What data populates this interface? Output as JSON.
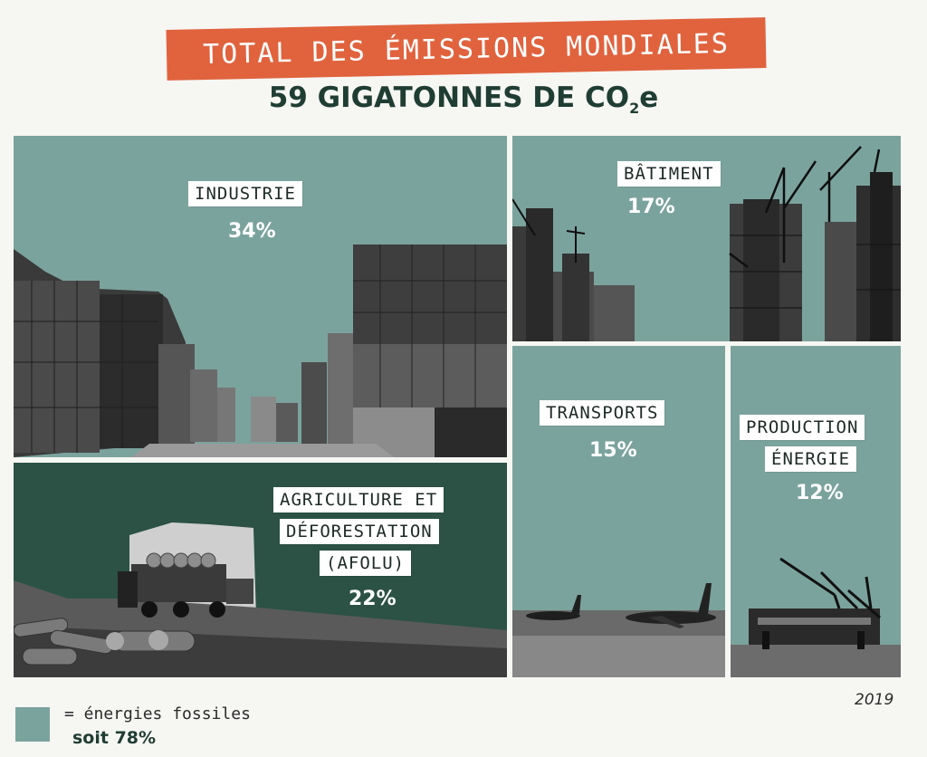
{
  "header": {
    "title": "TOTAL DES ÉMISSIONS MONDIALES",
    "subtitle_main": "59 GIGATONNES DE CO",
    "subtitle_sub": "2",
    "subtitle_end": "e"
  },
  "sectors": [
    {
      "id": "industrie",
      "label": "INDUSTRIE",
      "percent": "34%",
      "value": 34,
      "fossil": true
    },
    {
      "id": "batiment",
      "label": "BÂTIMENT",
      "percent": "17%",
      "value": 17,
      "fossil": true
    },
    {
      "id": "transports",
      "label": "TRANSPORTS",
      "percent": "15%",
      "value": 15,
      "fossil": true
    },
    {
      "id": "production-energie",
      "label_line1": "PRODUCTION",
      "label_line2": "ÉNERGIE",
      "percent": "12%",
      "value": 12,
      "fossil": true
    },
    {
      "id": "afolu",
      "label_line1": "AGRICULTURE ET",
      "label_line2": "DÉFORESTATION",
      "label_line3": "(AFOLU)",
      "percent": "22%",
      "value": 22,
      "fossil": false
    }
  ],
  "legend": {
    "text": "= énergies fossiles",
    "total": "soit 78%"
  },
  "year": "2019",
  "colors": {
    "fossil_tile": "#7ba39d",
    "non_fossil_tile": "#2b5245",
    "banner": "#e0633e",
    "heading": "#1f3d33"
  }
}
